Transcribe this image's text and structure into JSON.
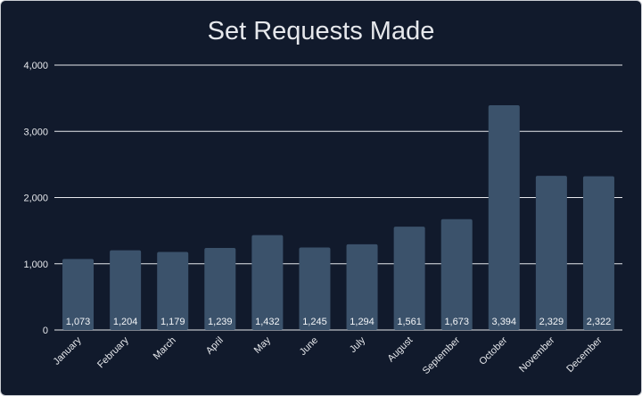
{
  "chart_data": {
    "type": "bar",
    "title": "Set Requests Made",
    "xlabel": "",
    "ylabel": "",
    "categories": [
      "January",
      "February",
      "March",
      "April",
      "May",
      "June",
      "July",
      "August",
      "September",
      "October",
      "November",
      "December"
    ],
    "values": [
      1073,
      1204,
      1179,
      1239,
      1432,
      1245,
      1294,
      1561,
      1673,
      3394,
      2329,
      2322
    ],
    "data_labels": [
      "1,073",
      "1,204",
      "1,179",
      "1,239",
      "1,432",
      "1,245",
      "1,294",
      "1,561",
      "1,673",
      "3,394",
      "2,329",
      "2,322"
    ],
    "ylim": [
      0,
      4000
    ],
    "yticks": [
      0,
      1000,
      2000,
      3000,
      4000
    ],
    "ytick_labels": [
      "0",
      "1,000",
      "2,000",
      "3,000",
      "4,000"
    ],
    "grid": true,
    "legend": "none",
    "colors": {
      "background": "#111a2c",
      "bar": "#3b526b",
      "gridline": "#e6e8ec",
      "text": "#e6e8ec"
    }
  }
}
